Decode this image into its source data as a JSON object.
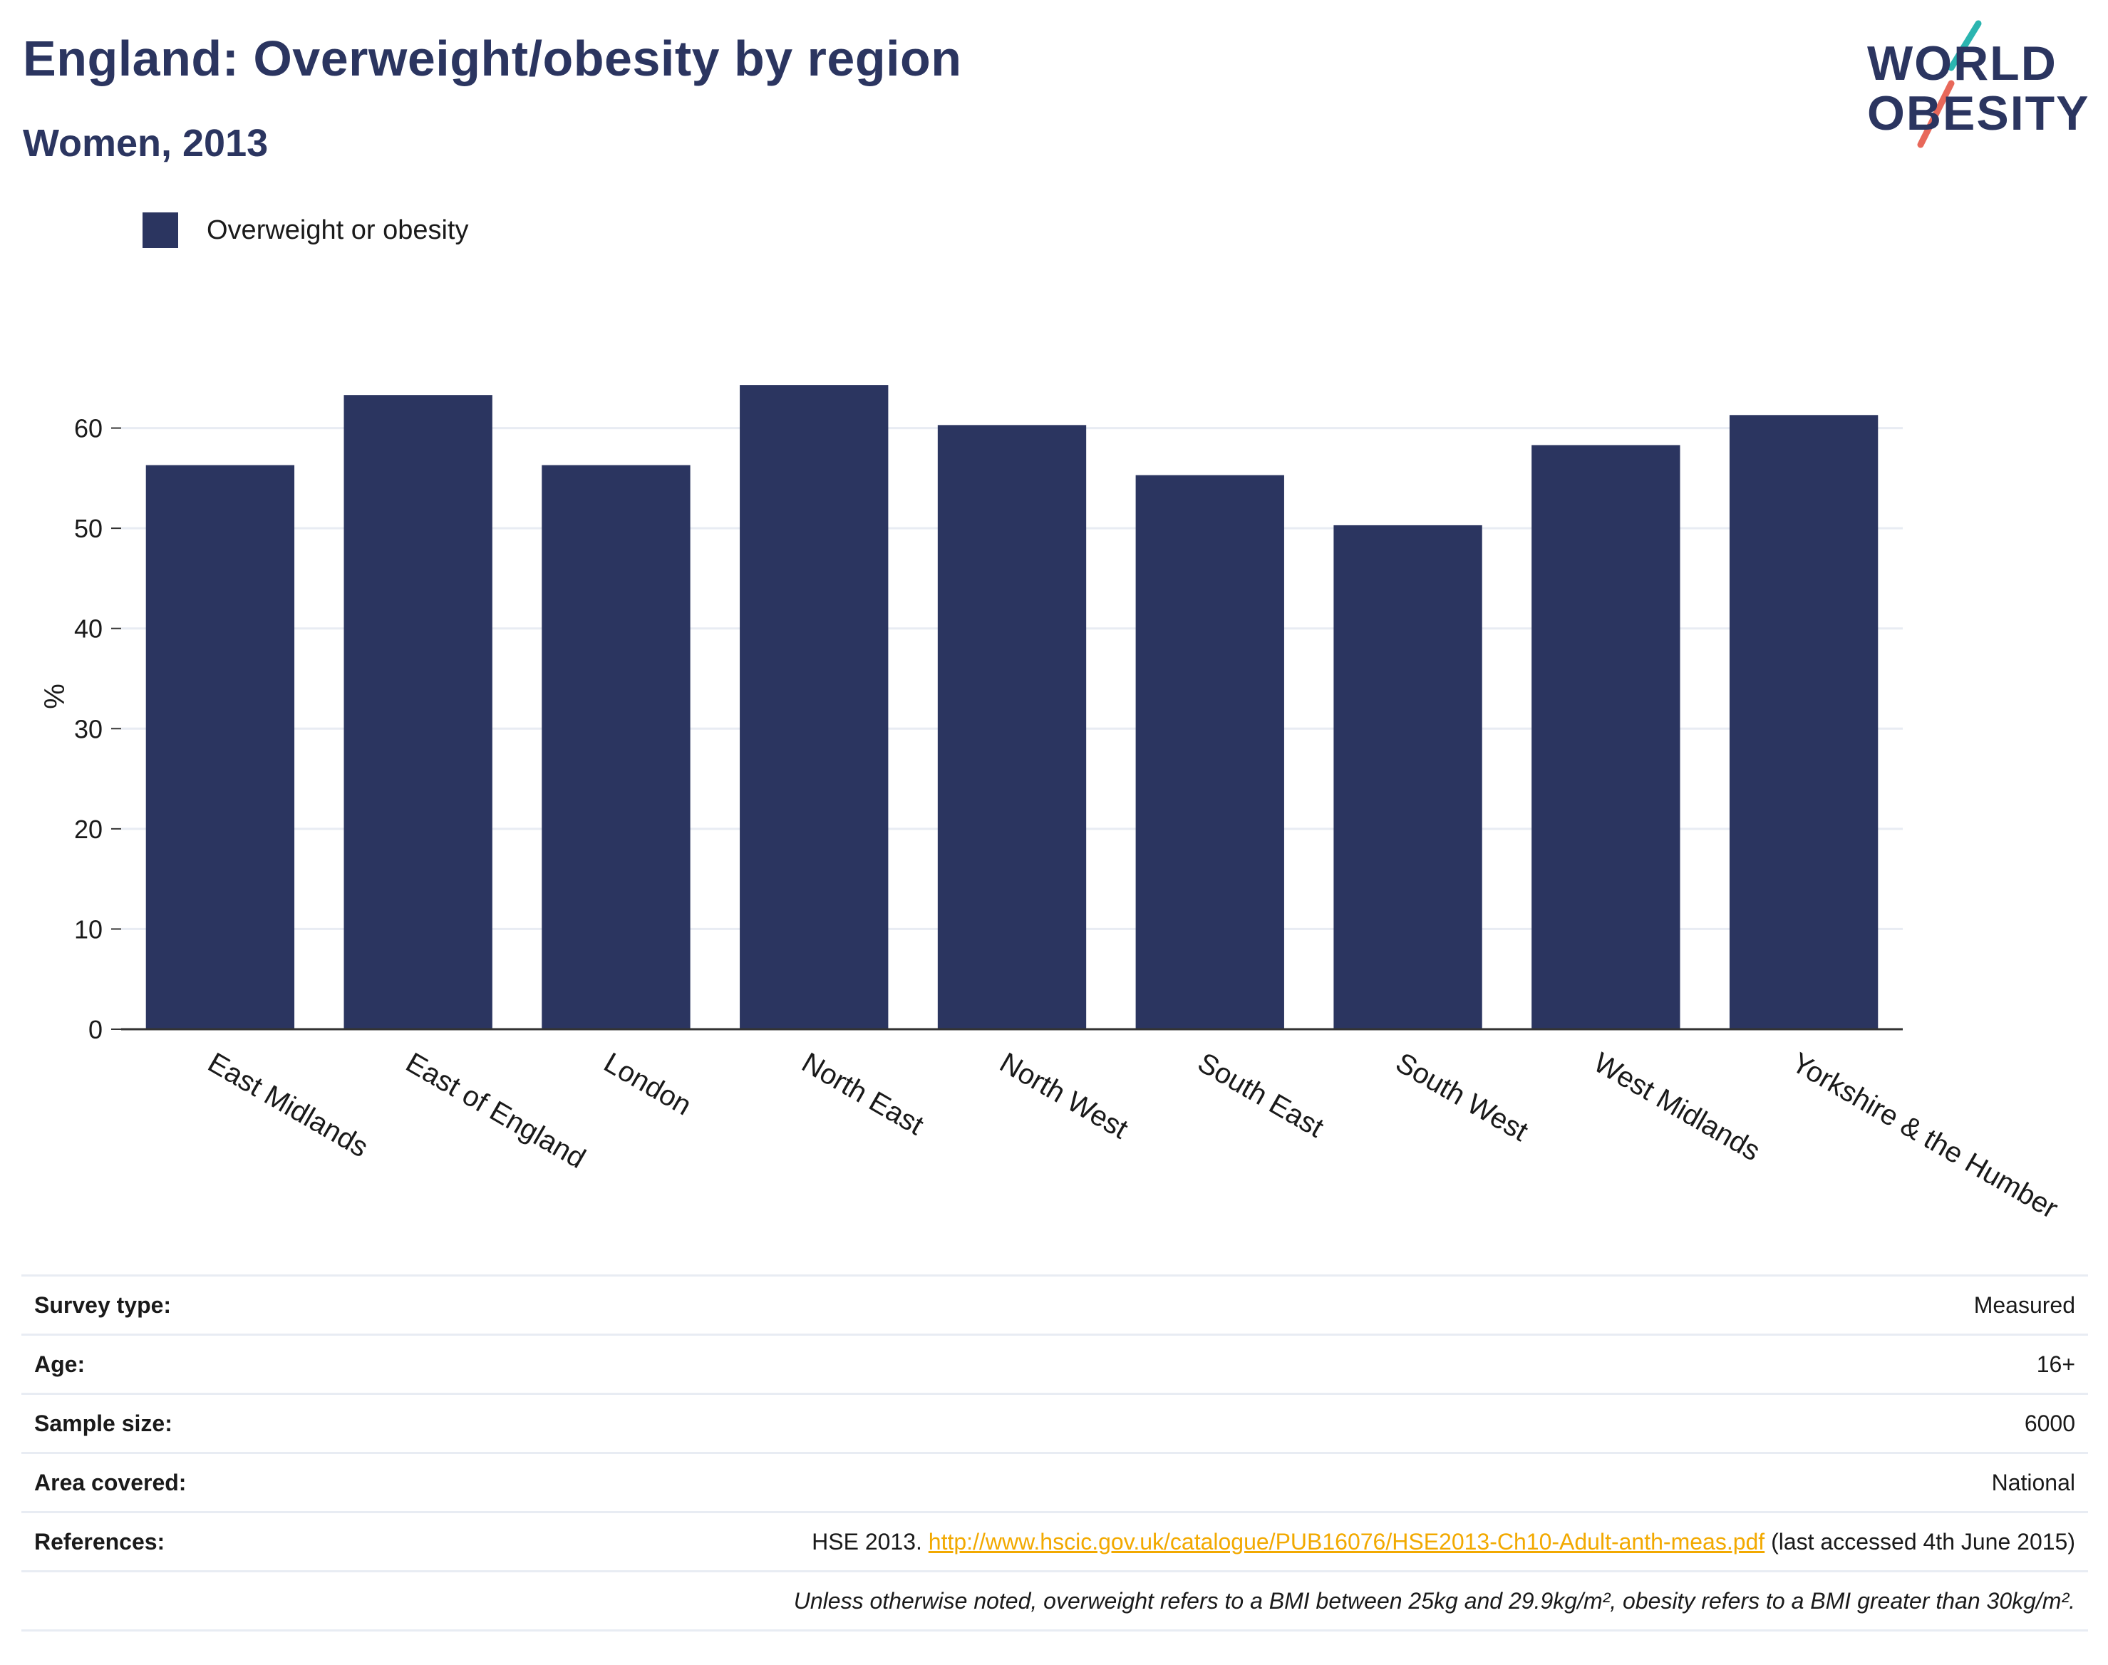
{
  "header": {
    "title": "England: Overweight/obesity by region",
    "subtitle": "Women, 2013"
  },
  "logo": {
    "line1": "WORLD",
    "line2": "OBESITY",
    "colors": {
      "text": "#2b3560",
      "slash_top": "#2bb5b0",
      "slash_bottom": "#e8685a"
    }
  },
  "colors": {
    "bar": "#2b3560",
    "link": "#f2a900",
    "grid": "#e8ecf3"
  },
  "chart_data": {
    "type": "bar",
    "categories": [
      "East Midlands",
      "East of England",
      "London",
      "North East",
      "North West",
      "South East",
      "South West",
      "West Midlands",
      "Yorkshire & the Humber"
    ],
    "series": [
      {
        "name": "Overweight or obesity",
        "values": [
          56.3,
          63.3,
          56.3,
          64.3,
          60.3,
          55.3,
          50.3,
          58.3,
          61.3
        ]
      }
    ],
    "ylabel": "%",
    "ylim": [
      0,
      70
    ],
    "yticks": [
      0,
      10,
      20,
      30,
      40,
      50,
      60
    ],
    "grid": true,
    "legend_position": "top-left"
  },
  "meta": {
    "rows": [
      {
        "label": "Survey type:",
        "value": "Measured"
      },
      {
        "label": "Age:",
        "value": "16+"
      },
      {
        "label": "Sample size:",
        "value": "6000"
      },
      {
        "label": "Area covered:",
        "value": "National"
      }
    ],
    "references": {
      "label": "References:",
      "prefix": "HSE 2013. ",
      "link": "http://www.hscic.gov.uk/catalogue/PUB16076/HSE2013-Ch10-Adult-anth-meas.pdf",
      "suffix": " (last accessed 4th June 2015)"
    },
    "note": "Unless otherwise noted, overweight refers to a BMI between 25kg and 29.9kg/m², obesity refers to a BMI greater than 30kg/m²."
  }
}
